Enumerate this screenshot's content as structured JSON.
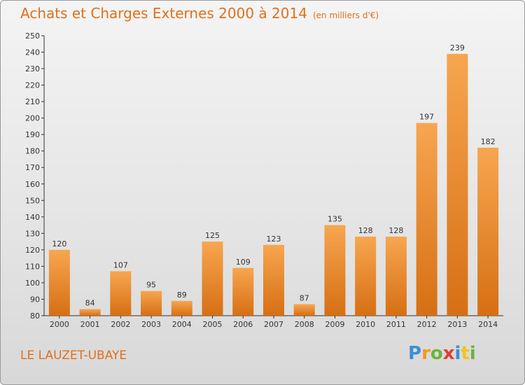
{
  "title": "Achats et Charges Externes 2000 à 2014",
  "unit": "(en milliers d'€)",
  "place": "LE LAUZET-UBAYE",
  "logo": {
    "letters": [
      "P",
      "r",
      "o",
      "x",
      "i",
      "t",
      "i"
    ],
    "colors": [
      "#3a8fd6",
      "#f29a1e",
      "#6ab53a",
      "#e23c3c",
      "#3a8fd6",
      "#f2c41e",
      "#6ab53a"
    ]
  },
  "colors": {
    "bar_top": "#f7a650",
    "bar_bottom": "#d66f13",
    "accent": "#e0701c"
  },
  "chart_data": {
    "type": "bar",
    "title": "Achats et Charges Externes 2000 à 2014",
    "categories": [
      "2000",
      "2001",
      "2002",
      "2003",
      "2004",
      "2005",
      "2006",
      "2007",
      "2008",
      "2009",
      "2010",
      "2011",
      "2012",
      "2013",
      "2014"
    ],
    "values": [
      120,
      84,
      107,
      95,
      89,
      125,
      109,
      123,
      87,
      135,
      128,
      128,
      197,
      239,
      182
    ],
    "ylim": [
      80,
      250
    ],
    "yticks": [
      80,
      90,
      100,
      110,
      120,
      130,
      140,
      150,
      160,
      170,
      180,
      190,
      200,
      210,
      220,
      230,
      240,
      250
    ],
    "grid": false
  }
}
